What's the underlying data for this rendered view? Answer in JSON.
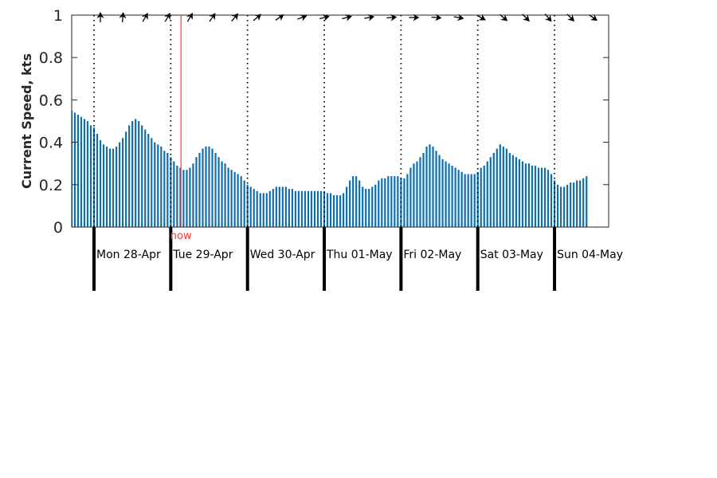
{
  "chart_data": {
    "type": "bar",
    "title": "",
    "ylabel": "Current Speed, kts",
    "ylim": [
      0,
      1
    ],
    "yticks": [
      "0",
      "0.2",
      "0.4",
      "0.6",
      "0.8",
      "1"
    ],
    "grid": false,
    "colors": {
      "bar": "#0f6fae",
      "now": "#ff3333",
      "axis": "#262626",
      "divider": "#000000"
    },
    "time_range_hours": [
      0,
      168
    ],
    "now_hour": 27.2,
    "now_label": "now",
    "days": [
      {
        "label": "Mon 28-Apr",
        "start_hour": 0
      },
      {
        "label": "Tue 29-Apr",
        "start_hour": 24
      },
      {
        "label": "Wed 30-Apr",
        "start_hour": 48
      },
      {
        "label": "Thu 01-May",
        "start_hour": 72
      },
      {
        "label": "Fri 02-May",
        "start_hour": 96
      },
      {
        "label": "Sat 03-May",
        "start_hour": 120
      },
      {
        "label": "Sun 04-May",
        "start_hour": 144
      }
    ],
    "speeds": [
      0.55,
      0.54,
      0.53,
      0.52,
      0.51,
      0.5,
      0.48,
      0.47,
      0.44,
      0.41,
      0.39,
      0.38,
      0.37,
      0.37,
      0.38,
      0.4,
      0.42,
      0.45,
      0.48,
      0.5,
      0.51,
      0.5,
      0.48,
      0.46,
      0.44,
      0.42,
      0.4,
      0.39,
      0.38,
      0.36,
      0.35,
      0.33,
      0.31,
      0.29,
      0.28,
      0.27,
      0.27,
      0.28,
      0.3,
      0.33,
      0.35,
      0.37,
      0.38,
      0.38,
      0.37,
      0.35,
      0.33,
      0.31,
      0.3,
      0.28,
      0.27,
      0.26,
      0.25,
      0.24,
      0.22,
      0.2,
      0.19,
      0.18,
      0.17,
      0.16,
      0.16,
      0.16,
      0.17,
      0.18,
      0.19,
      0.19,
      0.19,
      0.19,
      0.18,
      0.18,
      0.17,
      0.17,
      0.17,
      0.17,
      0.17,
      0.17,
      0.17,
      0.17,
      0.17,
      0.17,
      0.16,
      0.16,
      0.15,
      0.15,
      0.15,
      0.16,
      0.19,
      0.22,
      0.24,
      0.24,
      0.22,
      0.19,
      0.18,
      0.18,
      0.19,
      0.2,
      0.22,
      0.23,
      0.23,
      0.24,
      0.24,
      0.24,
      0.24,
      0.23,
      0.23,
      0.25,
      0.28,
      0.3,
      0.31,
      0.33,
      0.35,
      0.38,
      0.39,
      0.38,
      0.36,
      0.34,
      0.32,
      0.31,
      0.3,
      0.29,
      0.28,
      0.27,
      0.26,
      0.25,
      0.25,
      0.25,
      0.25,
      0.26,
      0.28,
      0.29,
      0.31,
      0.33,
      0.35,
      0.37,
      0.39,
      0.38,
      0.37,
      0.35,
      0.34,
      0.33,
      0.32,
      0.31,
      0.3,
      0.3,
      0.29,
      0.29,
      0.28,
      0.28,
      0.28,
      0.27,
      0.25,
      0.22,
      0.2,
      0.19,
      0.19,
      0.2,
      0.21,
      0.21,
      0.22,
      0.22,
      0.23,
      0.24
    ],
    "direction_arrows": [
      {
        "hour": 2,
        "direction_deg": 0
      },
      {
        "hour": 9,
        "direction_deg": 5
      },
      {
        "hour": 16,
        "direction_deg": 30
      },
      {
        "hour": 23,
        "direction_deg": 30
      },
      {
        "hour": 30,
        "direction_deg": 30
      },
      {
        "hour": 37,
        "direction_deg": 35
      },
      {
        "hour": 44,
        "direction_deg": 40
      },
      {
        "hour": 51,
        "direction_deg": 50
      },
      {
        "hour": 58,
        "direction_deg": 55
      },
      {
        "hour": 65,
        "direction_deg": 70
      },
      {
        "hour": 72,
        "direction_deg": 75
      },
      {
        "hour": 79,
        "direction_deg": 75
      },
      {
        "hour": 86,
        "direction_deg": 80
      },
      {
        "hour": 93,
        "direction_deg": 85
      },
      {
        "hour": 100,
        "direction_deg": 90
      },
      {
        "hour": 107,
        "direction_deg": 95
      },
      {
        "hour": 114,
        "direction_deg": 100
      },
      {
        "hour": 121,
        "direction_deg": 120
      },
      {
        "hour": 128,
        "direction_deg": 130
      },
      {
        "hour": 135,
        "direction_deg": 135
      },
      {
        "hour": 142,
        "direction_deg": 140
      },
      {
        "hour": 149,
        "direction_deg": 135
      },
      {
        "hour": 156,
        "direction_deg": 125
      },
      {
        "hour": 163,
        "direction_deg": 100
      }
    ]
  }
}
